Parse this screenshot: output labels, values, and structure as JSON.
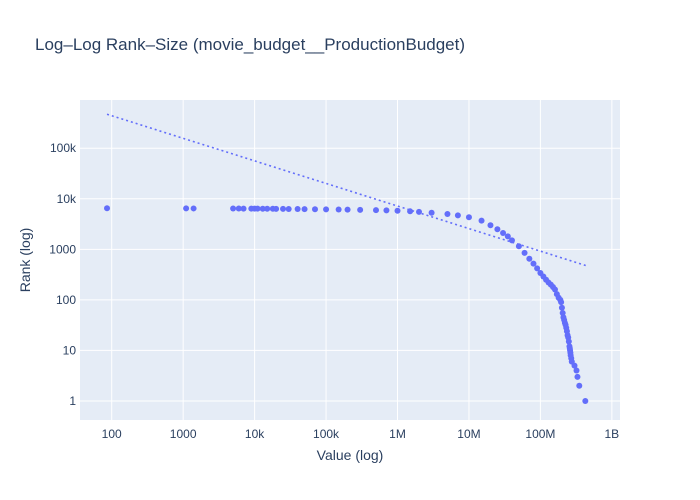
{
  "chart_data": {
    "type": "scatter",
    "title": "Log–Log Rank–Size (movie_budget__ProductionBudget)",
    "xlabel": "Value (log)",
    "ylabel": "Rank (log)",
    "x_scale": "log",
    "y_scale": "log",
    "xlim": [
      36,
      1300000000
    ],
    "ylim": [
      0.42,
      900000
    ],
    "x_ticks": [
      {
        "value": 100,
        "label": "100"
      },
      {
        "value": 1000,
        "label": "1000"
      },
      {
        "value": 10000,
        "label": "10k"
      },
      {
        "value": 100000,
        "label": "100k"
      },
      {
        "value": 1000000,
        "label": "1M"
      },
      {
        "value": 10000000,
        "label": "10M"
      },
      {
        "value": 100000000,
        "label": "100M"
      },
      {
        "value": 1000000000,
        "label": "1B"
      }
    ],
    "y_ticks": [
      {
        "value": 1,
        "label": "1"
      },
      {
        "value": 10,
        "label": "10"
      },
      {
        "value": 100,
        "label": "100"
      },
      {
        "value": 1000,
        "label": "1000"
      },
      {
        "value": 10000,
        "label": "10k"
      },
      {
        "value": 100000,
        "label": "100k"
      }
    ],
    "grid": true,
    "series": [
      {
        "kind": "markers",
        "color": "#636efa",
        "points": [
          [
            86,
            6500
          ],
          [
            1100,
            6450
          ],
          [
            1400,
            6440
          ],
          [
            5000,
            6420
          ],
          [
            6000,
            6410
          ],
          [
            7000,
            6400
          ],
          [
            9000,
            6390
          ],
          [
            10000,
            6380
          ],
          [
            11000,
            6370
          ],
          [
            13000,
            6360
          ],
          [
            15000,
            6350
          ],
          [
            18000,
            6340
          ],
          [
            20000,
            6330
          ],
          [
            25000,
            6310
          ],
          [
            30000,
            6290
          ],
          [
            40000,
            6270
          ],
          [
            50000,
            6250
          ],
          [
            70000,
            6220
          ],
          [
            100000,
            6180
          ],
          [
            150000,
            6130
          ],
          [
            200000,
            6090
          ],
          [
            300000,
            6030
          ],
          [
            500000,
            5950
          ],
          [
            700000,
            5880
          ],
          [
            1000000,
            5800
          ],
          [
            1500000,
            5650
          ],
          [
            2000000,
            5500
          ],
          [
            3000000,
            5300
          ],
          [
            5000000,
            5000
          ],
          [
            7000000,
            4700
          ],
          [
            10000000,
            4300
          ],
          [
            15000000,
            3700
          ],
          [
            20000000,
            3000
          ],
          [
            25000000,
            2500
          ],
          [
            30000000,
            2100
          ],
          [
            35000000,
            1800
          ],
          [
            40000000,
            1500
          ],
          [
            50000000,
            1150
          ],
          [
            60000000,
            850
          ],
          [
            70000000,
            650
          ],
          [
            80000000,
            520
          ],
          [
            90000000,
            420
          ],
          [
            100000000,
            340
          ],
          [
            110000000,
            290
          ],
          [
            120000000,
            250
          ],
          [
            130000000,
            220
          ],
          [
            140000000,
            200
          ],
          [
            150000000,
            180
          ],
          [
            160000000,
            160
          ],
          [
            170000000,
            130
          ],
          [
            180000000,
            110
          ],
          [
            190000000,
            100
          ],
          [
            195000000,
            90
          ],
          [
            200000000,
            70
          ],
          [
            205000000,
            55
          ],
          [
            210000000,
            45
          ],
          [
            215000000,
            40
          ],
          [
            220000000,
            35
          ],
          [
            225000000,
            32
          ],
          [
            230000000,
            28
          ],
          [
            235000000,
            24
          ],
          [
            240000000,
            20
          ],
          [
            245000000,
            18
          ],
          [
            250000000,
            15
          ],
          [
            255000000,
            12
          ],
          [
            258000000,
            11
          ],
          [
            260000000,
            10
          ],
          [
            263000000,
            9
          ],
          [
            265000000,
            8
          ],
          [
            270000000,
            7
          ],
          [
            275000000,
            6
          ],
          [
            300000000,
            5
          ],
          [
            320000000,
            4
          ],
          [
            330000000,
            3
          ],
          [
            350000000,
            2
          ],
          [
            425000000,
            1
          ]
        ]
      },
      {
        "kind": "dotted-line",
        "color": "#636efa",
        "points": [
          [
            86,
            470000
          ],
          [
            450000000,
            470
          ]
        ]
      }
    ]
  }
}
